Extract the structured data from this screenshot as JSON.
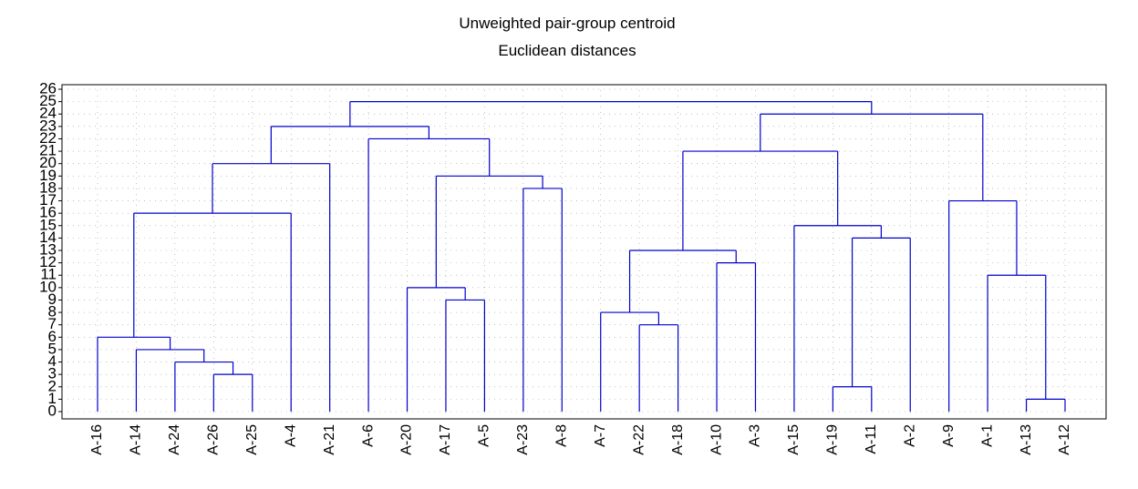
{
  "chart_data": {
    "type": "dendrogram",
    "title": "Unweighted pair-group centroid",
    "subtitle": "Euclidean distances",
    "color": "#0000cc",
    "grid": true,
    "ylim": [
      0,
      26
    ],
    "yticks": [
      0,
      1,
      2,
      3,
      4,
      5,
      6,
      7,
      8,
      9,
      10,
      11,
      12,
      13,
      14,
      15,
      16,
      17,
      18,
      19,
      20,
      21,
      22,
      23,
      24,
      25,
      26
    ],
    "tree": {
      "height": 25,
      "children": [
        {
          "height": 23,
          "children": [
            {
              "height": 20,
              "children": [
                {
                  "height": 16,
                  "children": [
                    {
                      "height": 6,
                      "children": [
                        "A-16",
                        {
                          "height": 5,
                          "children": [
                            "A-14",
                            {
                              "height": 4,
                              "children": [
                                "A-24",
                                {
                                  "height": 3,
                                  "children": [
                                    "A-26",
                                    "A-25"
                                  ]
                                }
                              ]
                            }
                          ]
                        }
                      ]
                    },
                    "A-4"
                  ]
                },
                "A-21"
              ]
            },
            {
              "height": 22,
              "children": [
                "A-6",
                {
                  "height": 19,
                  "children": [
                    {
                      "height": 10,
                      "children": [
                        "A-20",
                        {
                          "height": 9,
                          "children": [
                            "A-17",
                            "A-5"
                          ]
                        }
                      ]
                    },
                    {
                      "height": 18,
                      "children": [
                        "A-23",
                        "A-8"
                      ]
                    }
                  ]
                }
              ]
            }
          ]
        },
        {
          "height": 24,
          "children": [
            {
              "height": 21,
              "children": [
                {
                  "height": 13,
                  "children": [
                    {
                      "height": 8,
                      "children": [
                        "A-7",
                        {
                          "height": 7,
                          "children": [
                            "A-22",
                            "A-18"
                          ]
                        }
                      ]
                    },
                    {
                      "height": 12,
                      "children": [
                        "A-10",
                        "A-3"
                      ]
                    }
                  ]
                },
                {
                  "height": 15,
                  "children": [
                    "A-15",
                    {
                      "height": 14,
                      "children": [
                        {
                          "height": 2,
                          "children": [
                            "A-19",
                            "A-11"
                          ]
                        },
                        "A-2"
                      ]
                    }
                  ]
                }
              ]
            },
            {
              "height": 17,
              "children": [
                "A-9",
                {
                  "height": 11,
                  "children": [
                    "A-1",
                    {
                      "height": 1,
                      "children": [
                        "A-13",
                        "A-12"
                      ]
                    }
                  ]
                }
              ]
            }
          ]
        }
      ]
    }
  }
}
